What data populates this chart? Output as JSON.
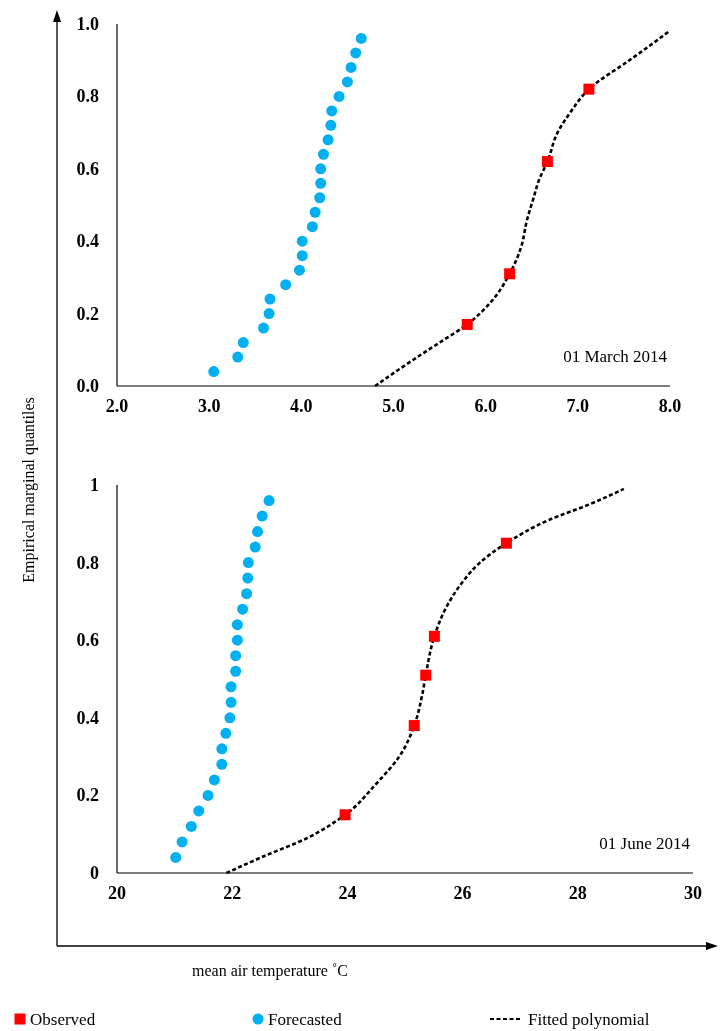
{
  "chart_data": [
    {
      "type": "scatter",
      "ylabel": "Empirical marginal quantiles",
      "xlim": [
        2,
        8
      ],
      "xticks": [
        {
          "value": 2,
          "label": "2.0"
        },
        {
          "value": 3,
          "label": "3.0"
        },
        {
          "value": 4,
          "label": "4.0"
        },
        {
          "value": 5,
          "label": "5.0"
        },
        {
          "value": 6,
          "label": "6.0"
        },
        {
          "value": 7,
          "label": "7.0"
        },
        {
          "value": 8,
          "label": "8.0"
        }
      ],
      "ylim": [
        0,
        1
      ],
      "yticks": [
        {
          "value": 0,
          "label": "0.0"
        },
        {
          "value": 0.2,
          "label": "0.2"
        },
        {
          "value": 0.4,
          "label": "0.4"
        },
        {
          "value": 0.6,
          "label": "0.6"
        },
        {
          "value": 0.8,
          "label": "0.8"
        },
        {
          "value": 1,
          "label": "1.0"
        }
      ],
      "grid": false,
      "legend": "bottom",
      "annotations": [
        "01 March 2014"
      ],
      "series": [
        {
          "name": "Fitted polynomial",
          "type": "line",
          "marker": "none",
          "line_style": "dashed",
          "color": "#000000",
          "x": [
            4.8,
            5.2,
            5.5,
            5.8,
            6.05,
            6.26,
            6.38,
            6.45,
            6.52,
            6.58,
            6.67,
            6.78,
            6.93,
            7.12,
            7.56,
            7.78,
            7.99
          ],
          "values": [
            0.0,
            0.07,
            0.12,
            0.17,
            0.23,
            0.31,
            0.38,
            0.46,
            0.52,
            0.57,
            0.62,
            0.7,
            0.76,
            0.82,
            0.9,
            0.94,
            0.98
          ]
        },
        {
          "name": "Observed",
          "marker": "square",
          "color": "#ff0000",
          "x": [
            5.8,
            6.26,
            6.67,
            7.12
          ],
          "values": [
            0.17,
            0.31,
            0.62,
            0.82
          ]
        },
        {
          "name": "Forecasted",
          "marker": "circle",
          "color": "#00b0f0",
          "x": [
            3.05,
            3.31,
            3.37,
            3.59,
            3.65,
            3.66,
            3.83,
            3.98,
            4.01,
            4.01,
            4.12,
            4.15,
            4.2,
            4.21,
            4.21,
            4.24,
            4.29,
            4.32,
            4.33,
            4.41,
            4.5,
            4.54,
            4.59,
            4.65
          ],
          "values": [
            0.04,
            0.08,
            0.12,
            0.16,
            0.2,
            0.24,
            0.28,
            0.32,
            0.36,
            0.4,
            0.44,
            0.48,
            0.52,
            0.56,
            0.6,
            0.64,
            0.68,
            0.72,
            0.76,
            0.8,
            0.84,
            0.88,
            0.92,
            0.96
          ]
        }
      ]
    },
    {
      "type": "scatter",
      "xlabel": "mean air temperature ˚C",
      "xlim": [
        20,
        30
      ],
      "xticks": [
        20,
        22,
        24,
        26,
        28,
        30
      ],
      "ylim": [
        0,
        1
      ],
      "yticks": [
        0,
        0.2,
        0.4,
        0.6,
        0.8,
        1
      ],
      "grid": false,
      "annotations": [
        "01 June 2014"
      ],
      "series": [
        {
          "type": "line",
          "marker": "none",
          "line_style": "dashed",
          "color": "#000000",
          "x": [
            21.9,
            22.5,
            23.3,
            23.96,
            24.5,
            24.9,
            25.16,
            25.3,
            25.36,
            25.51,
            25.7,
            26.0,
            26.3,
            26.76,
            27.5,
            28.2,
            28.8
          ],
          "values": [
            0.0,
            0.04,
            0.09,
            0.15,
            0.23,
            0.3,
            0.38,
            0.46,
            0.51,
            0.61,
            0.68,
            0.75,
            0.8,
            0.85,
            0.91,
            0.95,
            0.99
          ]
        },
        {
          "marker": "square",
          "color": "#ff0000",
          "x": [
            23.96,
            25.16,
            25.36,
            25.51,
            26.76
          ],
          "values": [
            0.15,
            0.38,
            0.51,
            0.61,
            0.85
          ]
        },
        {
          "marker": "circle",
          "color": "#00b0f0",
          "x": [
            21.02,
            21.13,
            21.29,
            21.42,
            21.58,
            21.69,
            21.82,
            21.82,
            21.89,
            21.96,
            21.98,
            21.98,
            22.06,
            22.06,
            22.09,
            22.09,
            22.18,
            22.25,
            22.27,
            22.28,
            22.4,
            22.44,
            22.52,
            22.64
          ],
          "values": [
            0.04,
            0.08,
            0.12,
            0.16,
            0.2,
            0.24,
            0.28,
            0.32,
            0.36,
            0.4,
            0.44,
            0.48,
            0.52,
            0.56,
            0.6,
            0.64,
            0.68,
            0.72,
            0.76,
            0.8,
            0.84,
            0.88,
            0.92,
            0.96
          ]
        }
      ]
    }
  ]
}
